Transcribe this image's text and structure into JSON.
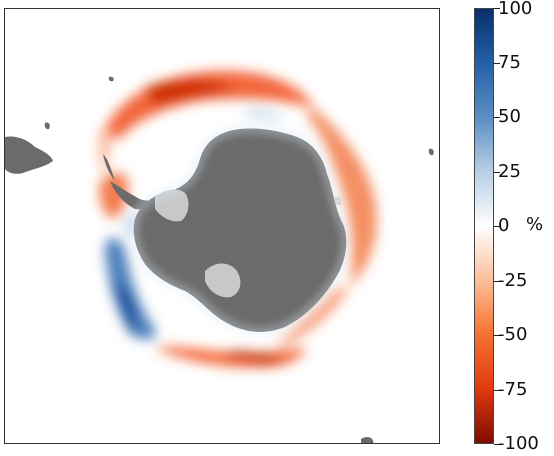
{
  "map": {
    "kind": "south-polar sea-ice concentration anomaly",
    "colors": {
      "land": "#6b6b6b",
      "ice_shelf": "#c8c8c8",
      "ocean_background": "#ffffff",
      "frame": "#333333"
    }
  },
  "colorbar": {
    "unit": "%",
    "min": -100,
    "max": 100,
    "tick_labels": [
      "100",
      "75",
      "50",
      "25",
      "0",
      "-25",
      "-50",
      "-75",
      "-100"
    ],
    "tick_values": [
      100,
      75,
      50,
      25,
      0,
      -25,
      -50,
      -75,
      -100
    ],
    "gradient": [
      {
        "value": 100,
        "color": "#08306b"
      },
      {
        "value": 75,
        "color": "#2460a7"
      },
      {
        "value": 50,
        "color": "#5b8ec4"
      },
      {
        "value": 25,
        "color": "#b8cfe6"
      },
      {
        "value": 0,
        "color": "#ffffff"
      },
      {
        "value": -25,
        "color": "#fdbf9a"
      },
      {
        "value": -50,
        "color": "#f5722f"
      },
      {
        "value": -75,
        "color": "#e03a0f"
      },
      {
        "value": -100,
        "color": "#7f0c00"
      }
    ]
  }
}
